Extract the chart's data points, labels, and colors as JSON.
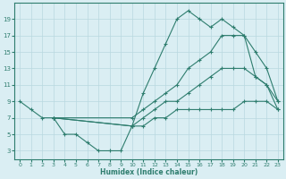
{
  "xlabel": "Humidex (Indice chaleur)",
  "background_color": "#daeef3",
  "line_color": "#2e7d6e",
  "grid_color": "#b8d8df",
  "xlim": [
    -0.5,
    23.5
  ],
  "ylim": [
    2,
    21
  ],
  "xticks": [
    0,
    1,
    2,
    3,
    4,
    5,
    6,
    7,
    8,
    9,
    10,
    11,
    12,
    13,
    14,
    15,
    16,
    17,
    18,
    19,
    20,
    21,
    22,
    23
  ],
  "yticks": [
    3,
    5,
    7,
    9,
    11,
    13,
    15,
    17,
    19
  ],
  "lines": [
    {
      "x": [
        0,
        1,
        2,
        3,
        4,
        5,
        6,
        7,
        8,
        9,
        10,
        11,
        12,
        13,
        14,
        15,
        16,
        17,
        18,
        19,
        20,
        21,
        22,
        23
      ],
      "y": [
        9,
        8,
        7,
        7,
        5,
        5,
        4,
        3,
        3,
        3,
        6,
        10,
        13,
        16,
        19,
        20,
        19,
        18,
        19,
        18,
        17,
        12,
        11,
        9
      ]
    },
    {
      "x": [
        3,
        10,
        11,
        12,
        13,
        14,
        15,
        16,
        17,
        18,
        19,
        20,
        21,
        22,
        23
      ],
      "y": [
        7,
        7,
        8,
        9,
        10,
        11,
        13,
        14,
        15,
        17,
        17,
        17,
        15,
        13,
        9
      ]
    },
    {
      "x": [
        3,
        10,
        11,
        12,
        13,
        14,
        15,
        16,
        17,
        18,
        19,
        20,
        21,
        22,
        23
      ],
      "y": [
        7,
        6,
        7,
        8,
        9,
        9,
        10,
        11,
        12,
        13,
        13,
        13,
        12,
        11,
        8
      ]
    },
    {
      "x": [
        3,
        10,
        11,
        12,
        13,
        14,
        15,
        16,
        17,
        18,
        19,
        20,
        21,
        22,
        23
      ],
      "y": [
        7,
        6,
        6,
        7,
        7,
        8,
        8,
        8,
        8,
        8,
        8,
        9,
        9,
        9,
        8
      ]
    }
  ]
}
